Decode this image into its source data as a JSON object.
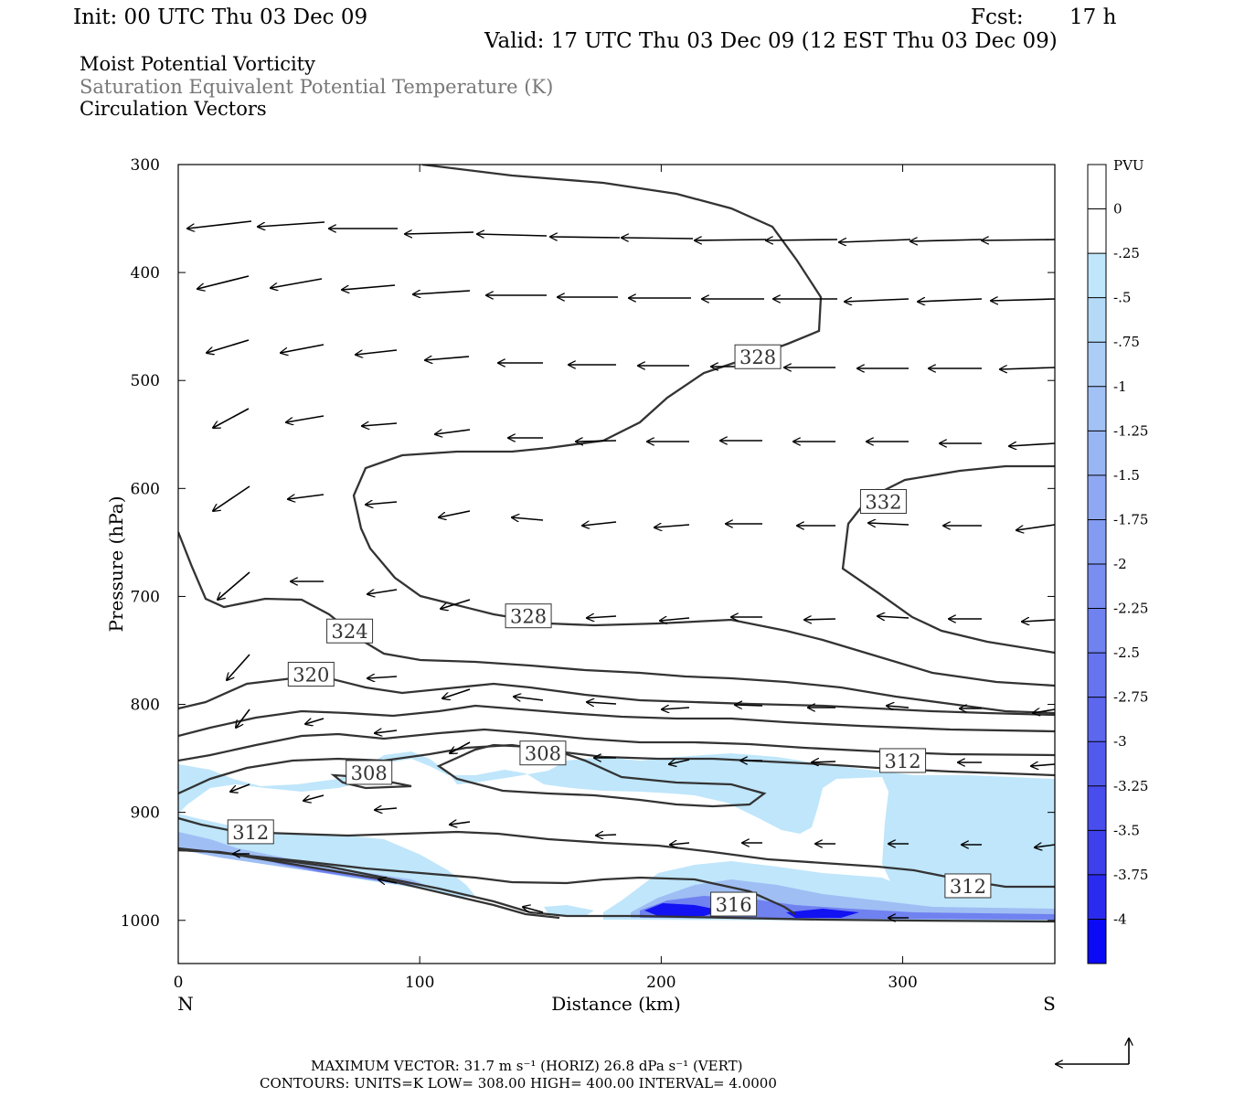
{
  "header": {
    "init": "Init: 00 UTC Thu 03 Dec 09",
    "fcst_label": "Fcst:",
    "fcst_value": "17 h",
    "valid": "Valid: 17 UTC Thu 03 Dec 09 (12 EST Thu 03 Dec 09)"
  },
  "fields": {
    "field1": "Moist Potential Vorticity",
    "field2": "Saturation Equivalent Potential Temperature (K)",
    "field3": "Circulation Vectors"
  },
  "footer": {
    "line1": "MAXIMUM VECTOR:  31.7 m s⁻¹ (HORIZ)        26.8 dPa s⁻¹ (VERT)",
    "line2": "CONTOURS:  UNITS=K  LOW=  308.00        HIGH=  400.00        INTERVAL=    4.0000"
  },
  "chart_data": {
    "type": "contour",
    "xlabel": "Distance (km)",
    "ylabel": "Pressure (hPa)",
    "x_end_left": "N",
    "x_end_right": "S",
    "xlim": [
      0,
      363
    ],
    "ylim": [
      1040,
      300
    ],
    "x_ticks": [
      "0",
      "100",
      "200",
      "300"
    ],
    "x_tick_values": [
      0,
      100,
      200,
      300
    ],
    "y_ticks": [
      "300",
      "400",
      "500",
      "600",
      "700",
      "800",
      "900",
      "1000"
    ],
    "y_tick_values": [
      300,
      400,
      500,
      600,
      700,
      800,
      900,
      1000
    ],
    "colorbar": {
      "units": "PVU",
      "labels": [
        "0",
        "-.25",
        "-.5",
        "-.75",
        "-1",
        "-1.25",
        "-1.5",
        "-1.75",
        "-2",
        "-2.25",
        "-2.5",
        "-2.75",
        "-3",
        "-3.25",
        "-3.5",
        "-3.75",
        "-4"
      ],
      "colors": [
        "#ffffff",
        "#ffffff",
        "#bfe6fb",
        "#b5daf7",
        "#abcdf6",
        "#a2c1f5",
        "#98b5f4",
        "#8ea8f3",
        "#849bf2",
        "#7a8ef1",
        "#7081f0",
        "#6674ef",
        "#5c67ee",
        "#525aee",
        "#484ded",
        "#3e40ec",
        "#2b2bf0",
        "#0a0af6"
      ]
    },
    "contour_labels": [
      {
        "text": "328",
        "x": 240,
        "p": 478
      },
      {
        "text": "332",
        "x": 292,
        "p": 612
      },
      {
        "text": "328",
        "x": 145,
        "p": 718
      },
      {
        "text": "324",
        "x": 71,
        "p": 732
      },
      {
        "text": "320",
        "x": 55,
        "p": 772
      },
      {
        "text": "308",
        "x": 151,
        "p": 845
      },
      {
        "text": "312",
        "x": 300,
        "p": 852
      },
      {
        "text": "308",
        "x": 79,
        "p": 863
      },
      {
        "text": "312",
        "x": 30,
        "p": 918
      },
      {
        "text": "312",
        "x": 327,
        "p": 968
      },
      {
        "text": "316",
        "x": 230,
        "p": 985
      }
    ]
  }
}
